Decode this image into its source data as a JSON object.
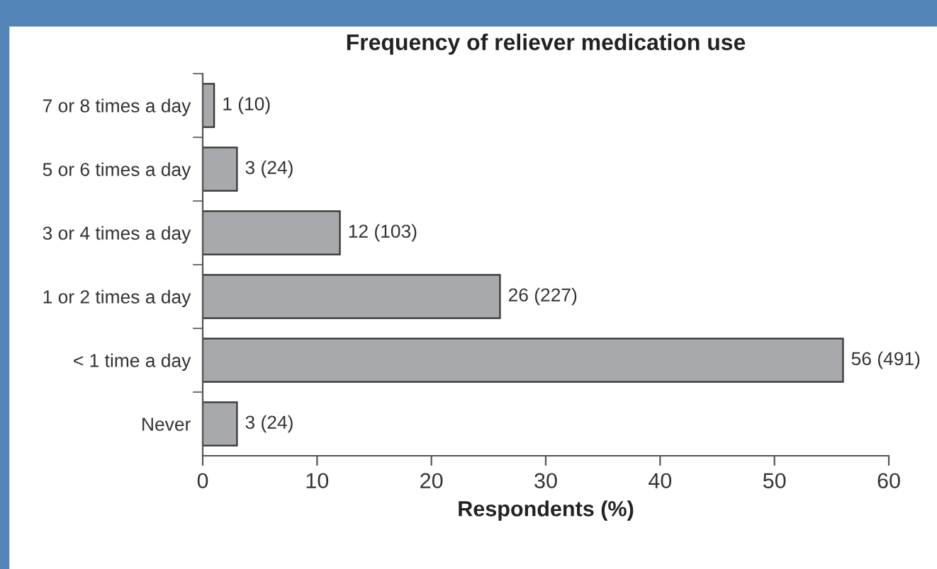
{
  "chart_data": {
    "type": "bar",
    "orientation": "horizontal",
    "title": "Frequency of reliever medication use",
    "xlabel": "Respondents (%)",
    "categories": [
      "7 or 8 times a day",
      "5 or 6 times a day",
      "3 or 4 times a day",
      "1 or 2 times a day",
      "< 1 time a day",
      "Never"
    ],
    "values": [
      1,
      3,
      12,
      26,
      56,
      3
    ],
    "value_labels": [
      "1 (10)",
      "3 (24)",
      "12 (103)",
      "26 (227)",
      "56 (491)",
      "3 (24)"
    ],
    "color": "#a7a9ac",
    "xlim": [
      0,
      60
    ],
    "xticks": [
      0,
      10,
      20,
      30,
      40,
      50,
      60
    ],
    "grid": false,
    "legend": false
  }
}
